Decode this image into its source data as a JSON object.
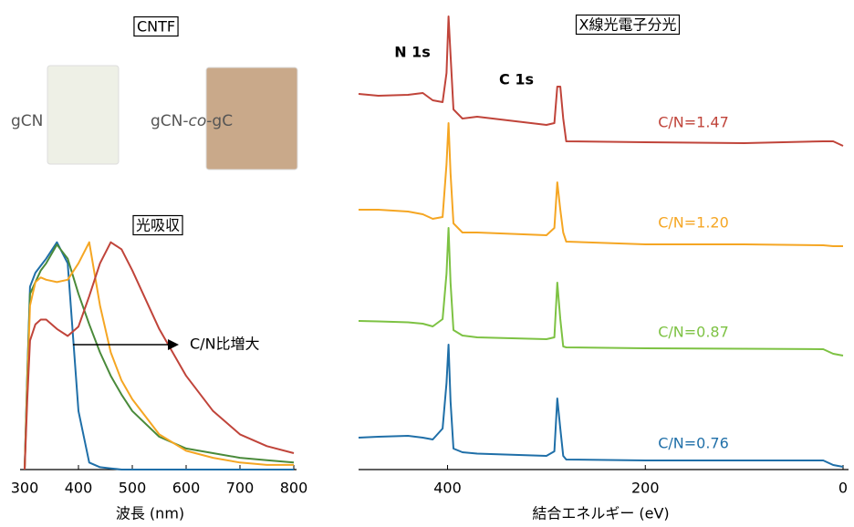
{
  "film_panel": {
    "title": "CNTF",
    "samples": [
      {
        "label_parts": [
          "gCN"
        ],
        "color": "#eef0e6"
      },
      {
        "label_parts": [
          "gCN-",
          "co",
          "-gC"
        ],
        "color": "#c9a98a"
      }
    ]
  },
  "chart_data": [
    {
      "type": "line",
      "title": "光吸収",
      "xlabel": "波長 (nm)",
      "annotation": "C/N比増大",
      "xlim": [
        300,
        800
      ],
      "xticks": [
        300,
        400,
        500,
        600,
        700,
        800
      ],
      "ylim": [
        0,
        1
      ],
      "x": [
        300,
        305,
        310,
        320,
        330,
        340,
        360,
        380,
        400,
        420,
        440,
        460,
        480,
        500,
        550,
        600,
        650,
        700,
        750,
        800
      ],
      "series": [
        {
          "color": "#1f6fa8",
          "values": [
            0,
            0.4,
            0.78,
            0.84,
            0.87,
            0.9,
            0.97,
            0.88,
            0.25,
            0.03,
            0.01,
            0.005,
            0,
            0,
            0,
            0,
            0,
            0,
            0,
            0
          ]
        },
        {
          "color": "#4a8a3a",
          "values": [
            0,
            0.4,
            0.75,
            0.8,
            0.85,
            0.88,
            0.96,
            0.9,
            0.75,
            0.62,
            0.5,
            0.4,
            0.32,
            0.25,
            0.14,
            0.09,
            0.07,
            0.05,
            0.04,
            0.03
          ]
        },
        {
          "color": "#f5a623",
          "values": [
            0,
            0.35,
            0.7,
            0.8,
            0.82,
            0.81,
            0.8,
            0.81,
            0.88,
            0.97,
            0.7,
            0.5,
            0.38,
            0.3,
            0.15,
            0.08,
            0.05,
            0.03,
            0.02,
            0.02
          ]
        },
        {
          "color": "#c0443a",
          "values": [
            0,
            0.3,
            0.55,
            0.62,
            0.64,
            0.64,
            0.6,
            0.57,
            0.61,
            0.74,
            0.88,
            0.97,
            0.94,
            0.85,
            0.6,
            0.4,
            0.25,
            0.15,
            0.1,
            0.07
          ]
        }
      ]
    },
    {
      "type": "line",
      "title": "X線光電子分光",
      "xlabel": "結合エネルギー (eV)",
      "annotations": [
        "N 1s",
        "C 1s"
      ],
      "xlim": [
        490,
        0
      ],
      "xticks": [
        400,
        200,
        0
      ],
      "ylim": [
        0,
        100
      ],
      "x": [
        490,
        470,
        440,
        425,
        415,
        405,
        401,
        399,
        397,
        394,
        385,
        370,
        300,
        292,
        289,
        286,
        283,
        280,
        200,
        100,
        20,
        10,
        0
      ],
      "series": [
        {
          "name": "C/N=1.47",
          "color": "#c0443a",
          "values": [
            82.4,
            82,
            82.2,
            82.6,
            81,
            80.6,
            87,
            99.4,
            91,
            79,
            77,
            77.4,
            75.6,
            76,
            84,
            84,
            77,
            72,
            71.8,
            71.6,
            72,
            72,
            71
          ]
        },
        {
          "name": "C/N=1.20",
          "color": "#f5a623",
          "values": [
            57,
            57,
            56.6,
            56,
            55,
            55.4,
            67,
            76,
            65,
            54,
            52,
            52,
            51.4,
            53,
            63,
            57,
            52,
            50,
            49.4,
            49.4,
            49.2,
            49,
            49
          ]
        },
        {
          "name": "C/N=0.87",
          "color": "#7dc243",
          "values": [
            32.6,
            32.5,
            32.3,
            32,
            31.4,
            33,
            43,
            53,
            41,
            30.6,
            29.4,
            29,
            28.6,
            29,
            41,
            33,
            27,
            26.8,
            26.6,
            26.5,
            26.4,
            25.4,
            25
          ]
        },
        {
          "name": "C/N=0.76",
          "color": "#1f6fa8",
          "values": [
            7,
            7.2,
            7.4,
            7,
            6.6,
            9,
            19,
            27.4,
            15,
            4.6,
            3.8,
            3.5,
            3,
            4,
            15.6,
            9,
            3,
            2.2,
            2,
            2,
            2,
            1,
            0.6
          ]
        }
      ]
    }
  ]
}
